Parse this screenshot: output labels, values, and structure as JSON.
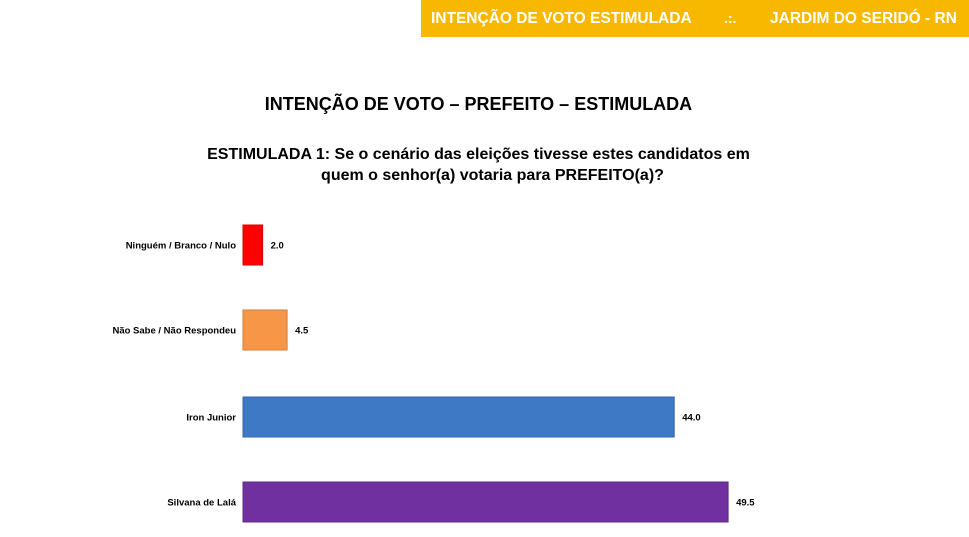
{
  "header": {
    "left": "INTENÇÃO DE VOTO ESTIMULADA",
    "separator": ".:.",
    "right": "JARDIM DO SERIDÓ - RN"
  },
  "title": "INTENÇÃO DE VOTO – PREFEITO – ESTIMULADA",
  "question": {
    "line1": "ESTIMULADA 1: Se o cenário das eleições tivesse estes candidatos em",
    "line2": "quem o senhor(a) votaria para PREFEITO(a)?"
  },
  "chart_data": {
    "type": "bar",
    "orientation": "horizontal",
    "categories": [
      "Ninguém / Branco / Nulo",
      "Não Sabe / Não Respondeu",
      "Iron Junior",
      "Silvana de Lalá"
    ],
    "values": [
      2.0,
      4.5,
      44.0,
      49.5
    ],
    "value_labels": [
      "2.0",
      "4.5",
      "44.0",
      "49.5"
    ],
    "colors": [
      "#ff0000",
      "#f79646",
      "#3d79c4",
      "#7030a0"
    ],
    "xlim": [
      0,
      50
    ],
    "grid": false,
    "legend": "none"
  }
}
